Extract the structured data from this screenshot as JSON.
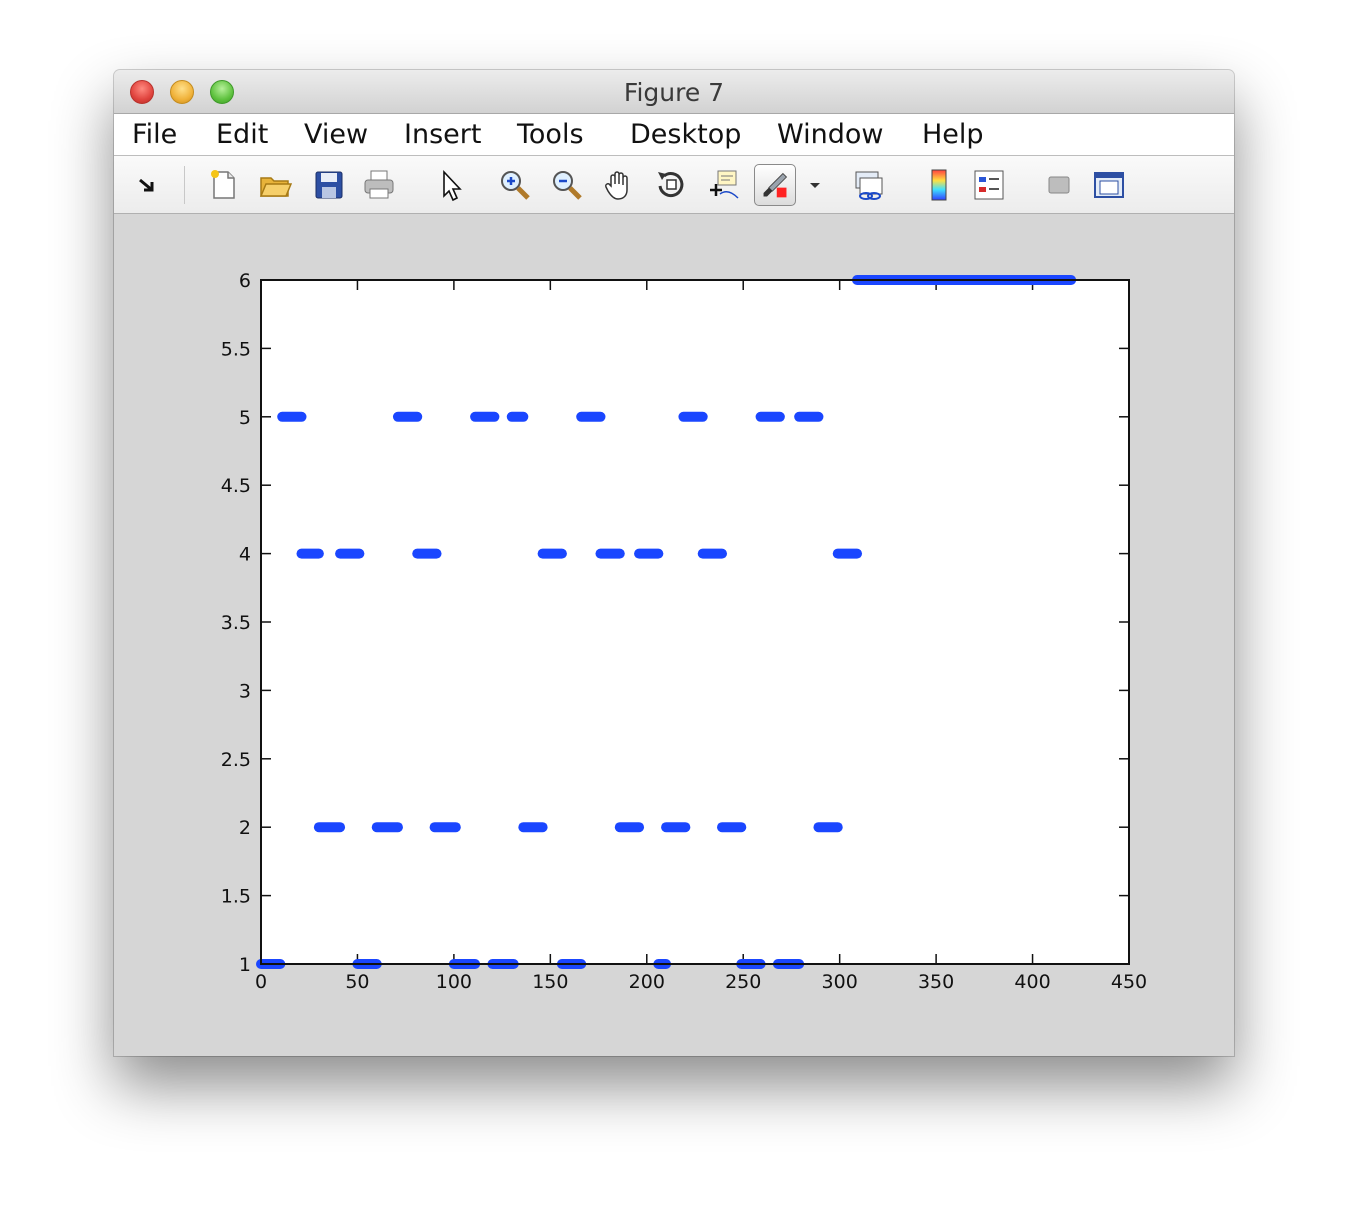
{
  "window": {
    "title": "Figure 7"
  },
  "menu": [
    "File",
    "Edit",
    "View",
    "Insert",
    "Tools",
    "Desktop",
    "Window",
    "Help"
  ],
  "toolbar": [
    {
      "name": "dock-arrow-icon"
    },
    {
      "name": "new-figure-icon"
    },
    {
      "name": "open-file-icon"
    },
    {
      "name": "save-icon"
    },
    {
      "name": "print-icon"
    },
    {
      "name": "edit-plot-pointer-icon"
    },
    {
      "name": "zoom-in-icon"
    },
    {
      "name": "zoom-out-icon"
    },
    {
      "name": "pan-hand-icon"
    },
    {
      "name": "rotate-3d-icon"
    },
    {
      "name": "data-cursor-icon"
    },
    {
      "name": "brush-icon"
    },
    {
      "name": "brush-dropdown-icon"
    },
    {
      "name": "link-plot-icon"
    },
    {
      "name": "colorbar-icon"
    },
    {
      "name": "legend-icon"
    },
    {
      "name": "hide-plot-tools-icon"
    },
    {
      "name": "show-plot-tools-icon"
    }
  ],
  "chart_data": {
    "type": "scatter",
    "xlim": [
      0,
      450
    ],
    "ylim": [
      1,
      6
    ],
    "xticks": [
      "0",
      "50",
      "100",
      "150",
      "200",
      "250",
      "300",
      "350",
      "400",
      "450"
    ],
    "yticks": [
      "1",
      "1.5",
      "2",
      "2.5",
      "3",
      "3.5",
      "4",
      "4.5",
      "5",
      "5.5",
      "6"
    ],
    "marker_color": "#1a46ff",
    "grid": false,
    "series": [
      {
        "segments": [
          {
            "x_start": 0,
            "x_end": 10,
            "y": 1
          },
          {
            "x_start": 11,
            "x_end": 21,
            "y": 5
          },
          {
            "x_start": 21,
            "x_end": 30,
            "y": 4
          },
          {
            "x_start": 30,
            "x_end": 41,
            "y": 2
          },
          {
            "x_start": 41,
            "x_end": 51,
            "y": 4
          },
          {
            "x_start": 50,
            "x_end": 60,
            "y": 1
          },
          {
            "x_start": 60,
            "x_end": 71,
            "y": 2
          },
          {
            "x_start": 71,
            "x_end": 81,
            "y": 5
          },
          {
            "x_start": 81,
            "x_end": 91,
            "y": 4
          },
          {
            "x_start": 90,
            "x_end": 101,
            "y": 2
          },
          {
            "x_start": 100,
            "x_end": 111,
            "y": 1
          },
          {
            "x_start": 111,
            "x_end": 121,
            "y": 5
          },
          {
            "x_start": 120,
            "x_end": 131,
            "y": 1
          },
          {
            "x_start": 130,
            "x_end": 136,
            "y": 5
          },
          {
            "x_start": 136,
            "x_end": 146,
            "y": 2
          },
          {
            "x_start": 146,
            "x_end": 156,
            "y": 4
          },
          {
            "x_start": 156,
            "x_end": 166,
            "y": 1
          },
          {
            "x_start": 166,
            "x_end": 176,
            "y": 5
          },
          {
            "x_start": 176,
            "x_end": 186,
            "y": 4
          },
          {
            "x_start": 186,
            "x_end": 196,
            "y": 2
          },
          {
            "x_start": 196,
            "x_end": 206,
            "y": 4
          },
          {
            "x_start": 206,
            "x_end": 210,
            "y": 1
          },
          {
            "x_start": 210,
            "x_end": 220,
            "y": 2
          },
          {
            "x_start": 219,
            "x_end": 229,
            "y": 5
          },
          {
            "x_start": 229,
            "x_end": 239,
            "y": 4
          },
          {
            "x_start": 239,
            "x_end": 249,
            "y": 2
          },
          {
            "x_start": 249,
            "x_end": 259,
            "y": 1
          },
          {
            "x_start": 259,
            "x_end": 269,
            "y": 5
          },
          {
            "x_start": 268,
            "x_end": 279,
            "y": 1
          },
          {
            "x_start": 279,
            "x_end": 289,
            "y": 5
          },
          {
            "x_start": 289,
            "x_end": 299,
            "y": 2
          },
          {
            "x_start": 299,
            "x_end": 309,
            "y": 4
          },
          {
            "x_start": 309,
            "x_end": 420,
            "y": 6
          }
        ]
      }
    ]
  }
}
